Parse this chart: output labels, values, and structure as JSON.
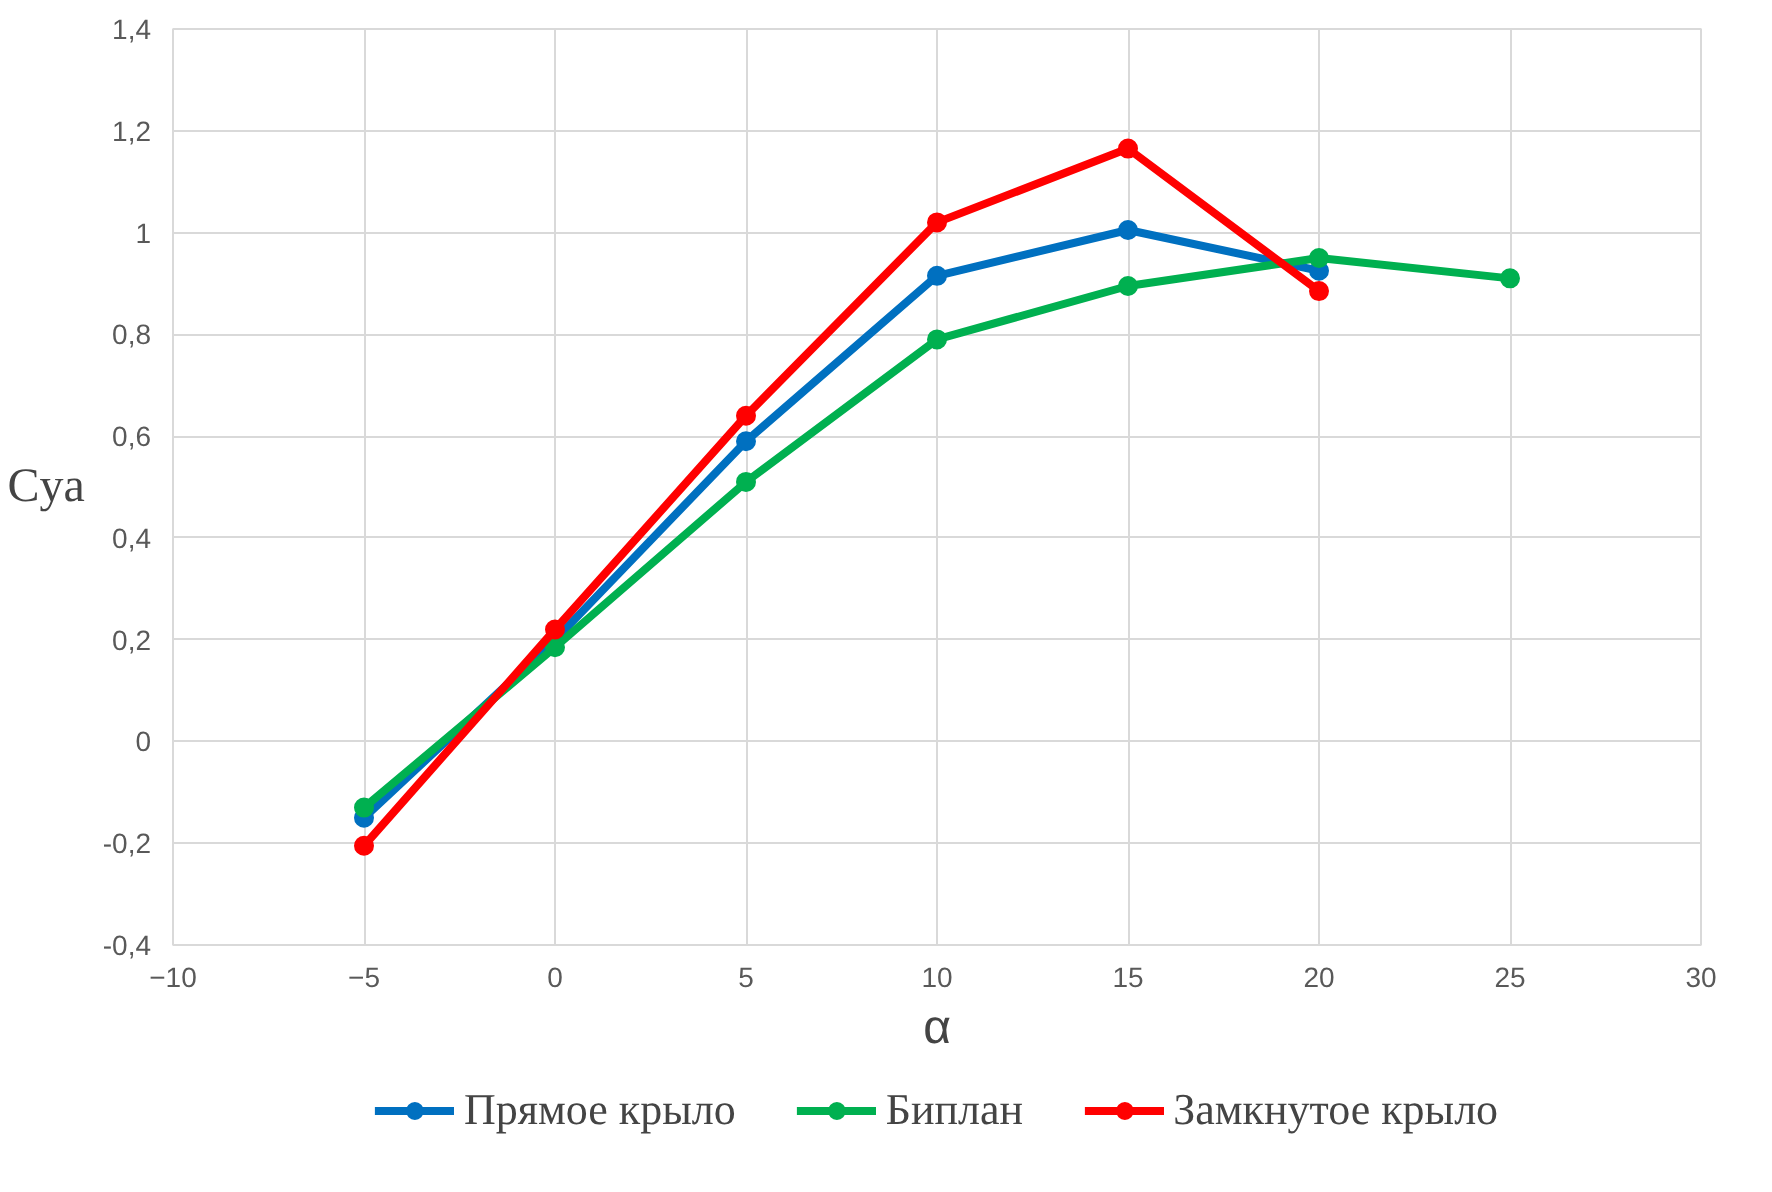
{
  "chart_data": {
    "type": "line",
    "xlabel": "α",
    "ylabel": "Cya",
    "x": [
      -5,
      0,
      5,
      10,
      15,
      20,
      25
    ],
    "series": [
      {
        "name": "Прямое крыло",
        "color": "#0070c0",
        "values": [
          -0.15,
          0.2,
          0.59,
          0.915,
          1.005,
          0.925,
          null
        ]
      },
      {
        "name": "Биплан",
        "color": "#00b050",
        "values": [
          -0.13,
          0.185,
          0.51,
          0.79,
          0.895,
          0.95,
          0.91
        ]
      },
      {
        "name": "Замкнутое крыло",
        "color": "#ff0000",
        "values": [
          -0.205,
          0.22,
          0.64,
          1.02,
          1.165,
          0.885,
          null
        ]
      }
    ],
    "xlim": [
      -10,
      30
    ],
    "xticks": [
      -10,
      -5,
      0,
      5,
      10,
      15,
      20,
      25,
      30
    ],
    "ylim": [
      -0.4,
      1.4
    ],
    "yticks": [
      {
        "value": -0.4,
        "label": "-0,4"
      },
      {
        "value": -0.2,
        "label": "-0,2"
      },
      0,
      {
        "value": 0.2,
        "label": "0,2"
      },
      {
        "value": 0.4,
        "label": "0,4"
      },
      {
        "value": 0.6,
        "label": "0,6"
      },
      {
        "value": 0.8,
        "label": "0,8"
      },
      1,
      {
        "value": 1.2,
        "label": "1,2"
      },
      {
        "value": 1.4,
        "label": "1,4"
      }
    ],
    "grid": true,
    "legend": "bottom",
    "marker": "circle",
    "line_style": "solid"
  }
}
